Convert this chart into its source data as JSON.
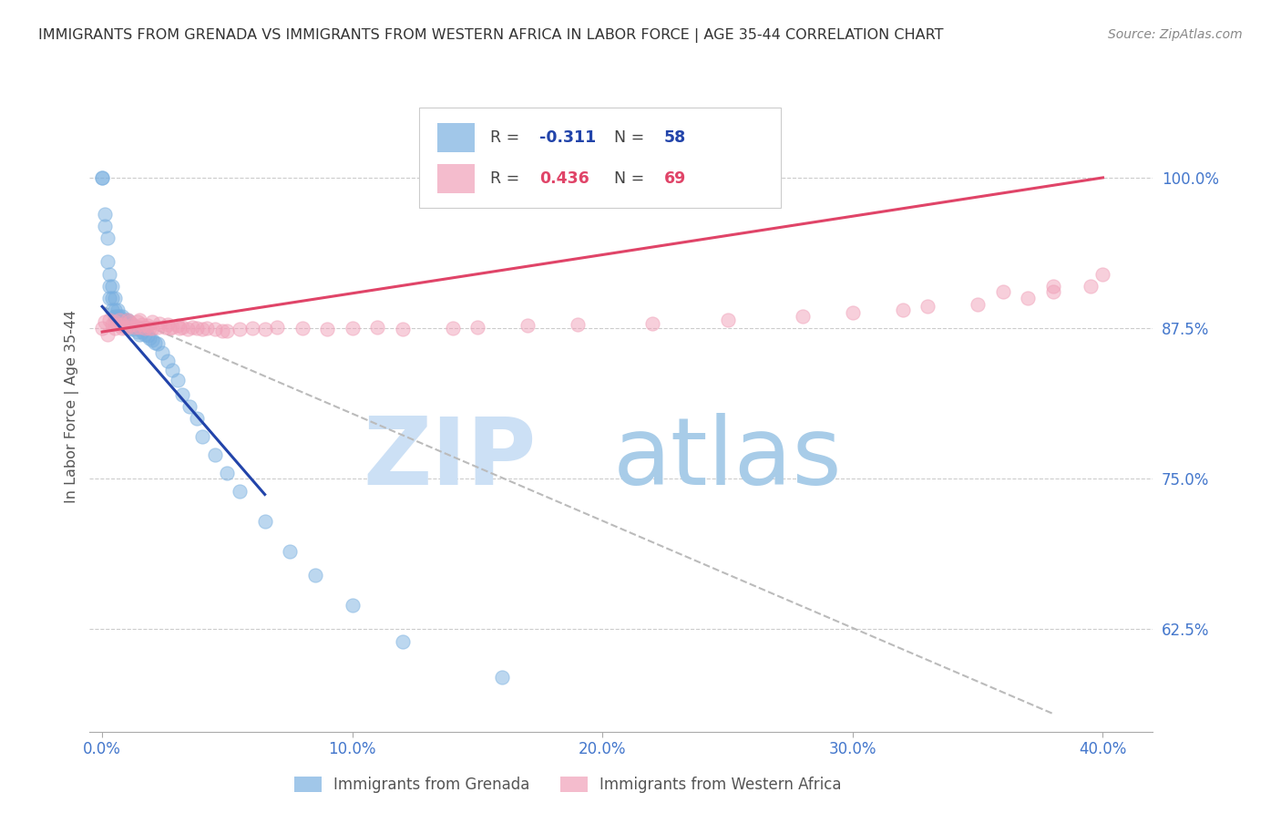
{
  "title": "IMMIGRANTS FROM GRENADA VS IMMIGRANTS FROM WESTERN AFRICA IN LABOR FORCE | AGE 35-44 CORRELATION CHART",
  "source_text": "Source: ZipAtlas.com",
  "ylabel": "In Labor Force | Age 35-44",
  "x_tick_labels": [
    "0.0%",
    "10.0%",
    "20.0%",
    "30.0%",
    "40.0%"
  ],
  "x_tick_positions": [
    0.0,
    0.1,
    0.2,
    0.3,
    0.4
  ],
  "y_tick_labels": [
    "62.5%",
    "75.0%",
    "87.5%",
    "100.0%"
  ],
  "y_tick_positions": [
    0.625,
    0.75,
    0.875,
    1.0
  ],
  "xlim": [
    -0.005,
    0.42
  ],
  "ylim": [
    0.54,
    1.08
  ],
  "grenada_R": -0.311,
  "grenada_N": 58,
  "western_africa_R": 0.436,
  "western_africa_N": 69,
  "grenada_color": "#7ab0e0",
  "western_africa_color": "#f0a0b8",
  "grenada_line_color": "#2244aa",
  "western_africa_line_color": "#e04468",
  "dashed_line_color": "#bbbbbb",
  "tick_label_color": "#4477cc",
  "background_color": "#ffffff",
  "title_color": "#333333",
  "source_color": "#888888",
  "watermark_zip_color": "#cce0f5",
  "watermark_atlas_color": "#a8cce8",
  "grenada_scatter_x": [
    0.0,
    0.0,
    0.001,
    0.001,
    0.002,
    0.002,
    0.003,
    0.003,
    0.003,
    0.004,
    0.004,
    0.004,
    0.005,
    0.005,
    0.005,
    0.006,
    0.006,
    0.007,
    0.007,
    0.008,
    0.008,
    0.009,
    0.009,
    0.01,
    0.01,
    0.011,
    0.011,
    0.012,
    0.012,
    0.013,
    0.014,
    0.014,
    0.015,
    0.015,
    0.016,
    0.017,
    0.018,
    0.019,
    0.02,
    0.021,
    0.022,
    0.024,
    0.026,
    0.028,
    0.03,
    0.032,
    0.035,
    0.038,
    0.04,
    0.045,
    0.05,
    0.055,
    0.065,
    0.075,
    0.085,
    0.1,
    0.12,
    0.16
  ],
  "grenada_scatter_y": [
    1.0,
    1.0,
    0.97,
    0.96,
    0.95,
    0.93,
    0.92,
    0.91,
    0.9,
    0.91,
    0.9,
    0.89,
    0.9,
    0.89,
    0.885,
    0.89,
    0.885,
    0.885,
    0.88,
    0.885,
    0.88,
    0.882,
    0.878,
    0.882,
    0.878,
    0.88,
    0.875,
    0.878,
    0.874,
    0.876,
    0.875,
    0.872,
    0.875,
    0.87,
    0.872,
    0.87,
    0.869,
    0.867,
    0.865,
    0.863,
    0.862,
    0.855,
    0.848,
    0.84,
    0.832,
    0.82,
    0.81,
    0.8,
    0.785,
    0.77,
    0.755,
    0.74,
    0.715,
    0.69,
    0.67,
    0.645,
    0.615,
    0.585
  ],
  "wa_scatter_x": [
    0.0,
    0.001,
    0.002,
    0.003,
    0.004,
    0.005,
    0.005,
    0.006,
    0.007,
    0.008,
    0.008,
    0.009,
    0.01,
    0.01,
    0.011,
    0.012,
    0.013,
    0.014,
    0.015,
    0.015,
    0.016,
    0.017,
    0.018,
    0.019,
    0.02,
    0.02,
    0.022,
    0.023,
    0.025,
    0.026,
    0.027,
    0.028,
    0.03,
    0.031,
    0.032,
    0.034,
    0.036,
    0.038,
    0.04,
    0.042,
    0.045,
    0.048,
    0.05,
    0.055,
    0.06,
    0.065,
    0.07,
    0.08,
    0.09,
    0.1,
    0.11,
    0.12,
    0.14,
    0.15,
    0.17,
    0.19,
    0.22,
    0.25,
    0.28,
    0.3,
    0.32,
    0.33,
    0.35,
    0.37,
    0.38,
    0.395,
    0.4,
    0.38,
    0.36
  ],
  "wa_scatter_y": [
    0.875,
    0.88,
    0.87,
    0.882,
    0.878,
    0.88,
    0.875,
    0.878,
    0.882,
    0.878,
    0.875,
    0.876,
    0.882,
    0.876,
    0.88,
    0.878,
    0.876,
    0.88,
    0.882,
    0.876,
    0.878,
    0.875,
    0.877,
    0.875,
    0.88,
    0.875,
    0.876,
    0.879,
    0.876,
    0.878,
    0.875,
    0.876,
    0.877,
    0.875,
    0.876,
    0.874,
    0.876,
    0.875,
    0.874,
    0.875,
    0.874,
    0.873,
    0.873,
    0.874,
    0.875,
    0.874,
    0.876,
    0.875,
    0.874,
    0.875,
    0.876,
    0.874,
    0.875,
    0.876,
    0.877,
    0.878,
    0.879,
    0.882,
    0.885,
    0.888,
    0.89,
    0.893,
    0.895,
    0.9,
    0.905,
    0.91,
    0.92,
    0.91,
    0.905
  ],
  "grenada_line_x": [
    0.0,
    0.065
  ],
  "grenada_line_y": [
    0.893,
    0.737
  ],
  "wa_line_x": [
    0.0,
    0.4
  ],
  "wa_line_y": [
    0.872,
    1.0
  ],
  "dash_line_x": [
    0.0,
    0.38
  ],
  "dash_line_y": [
    0.893,
    0.555
  ]
}
